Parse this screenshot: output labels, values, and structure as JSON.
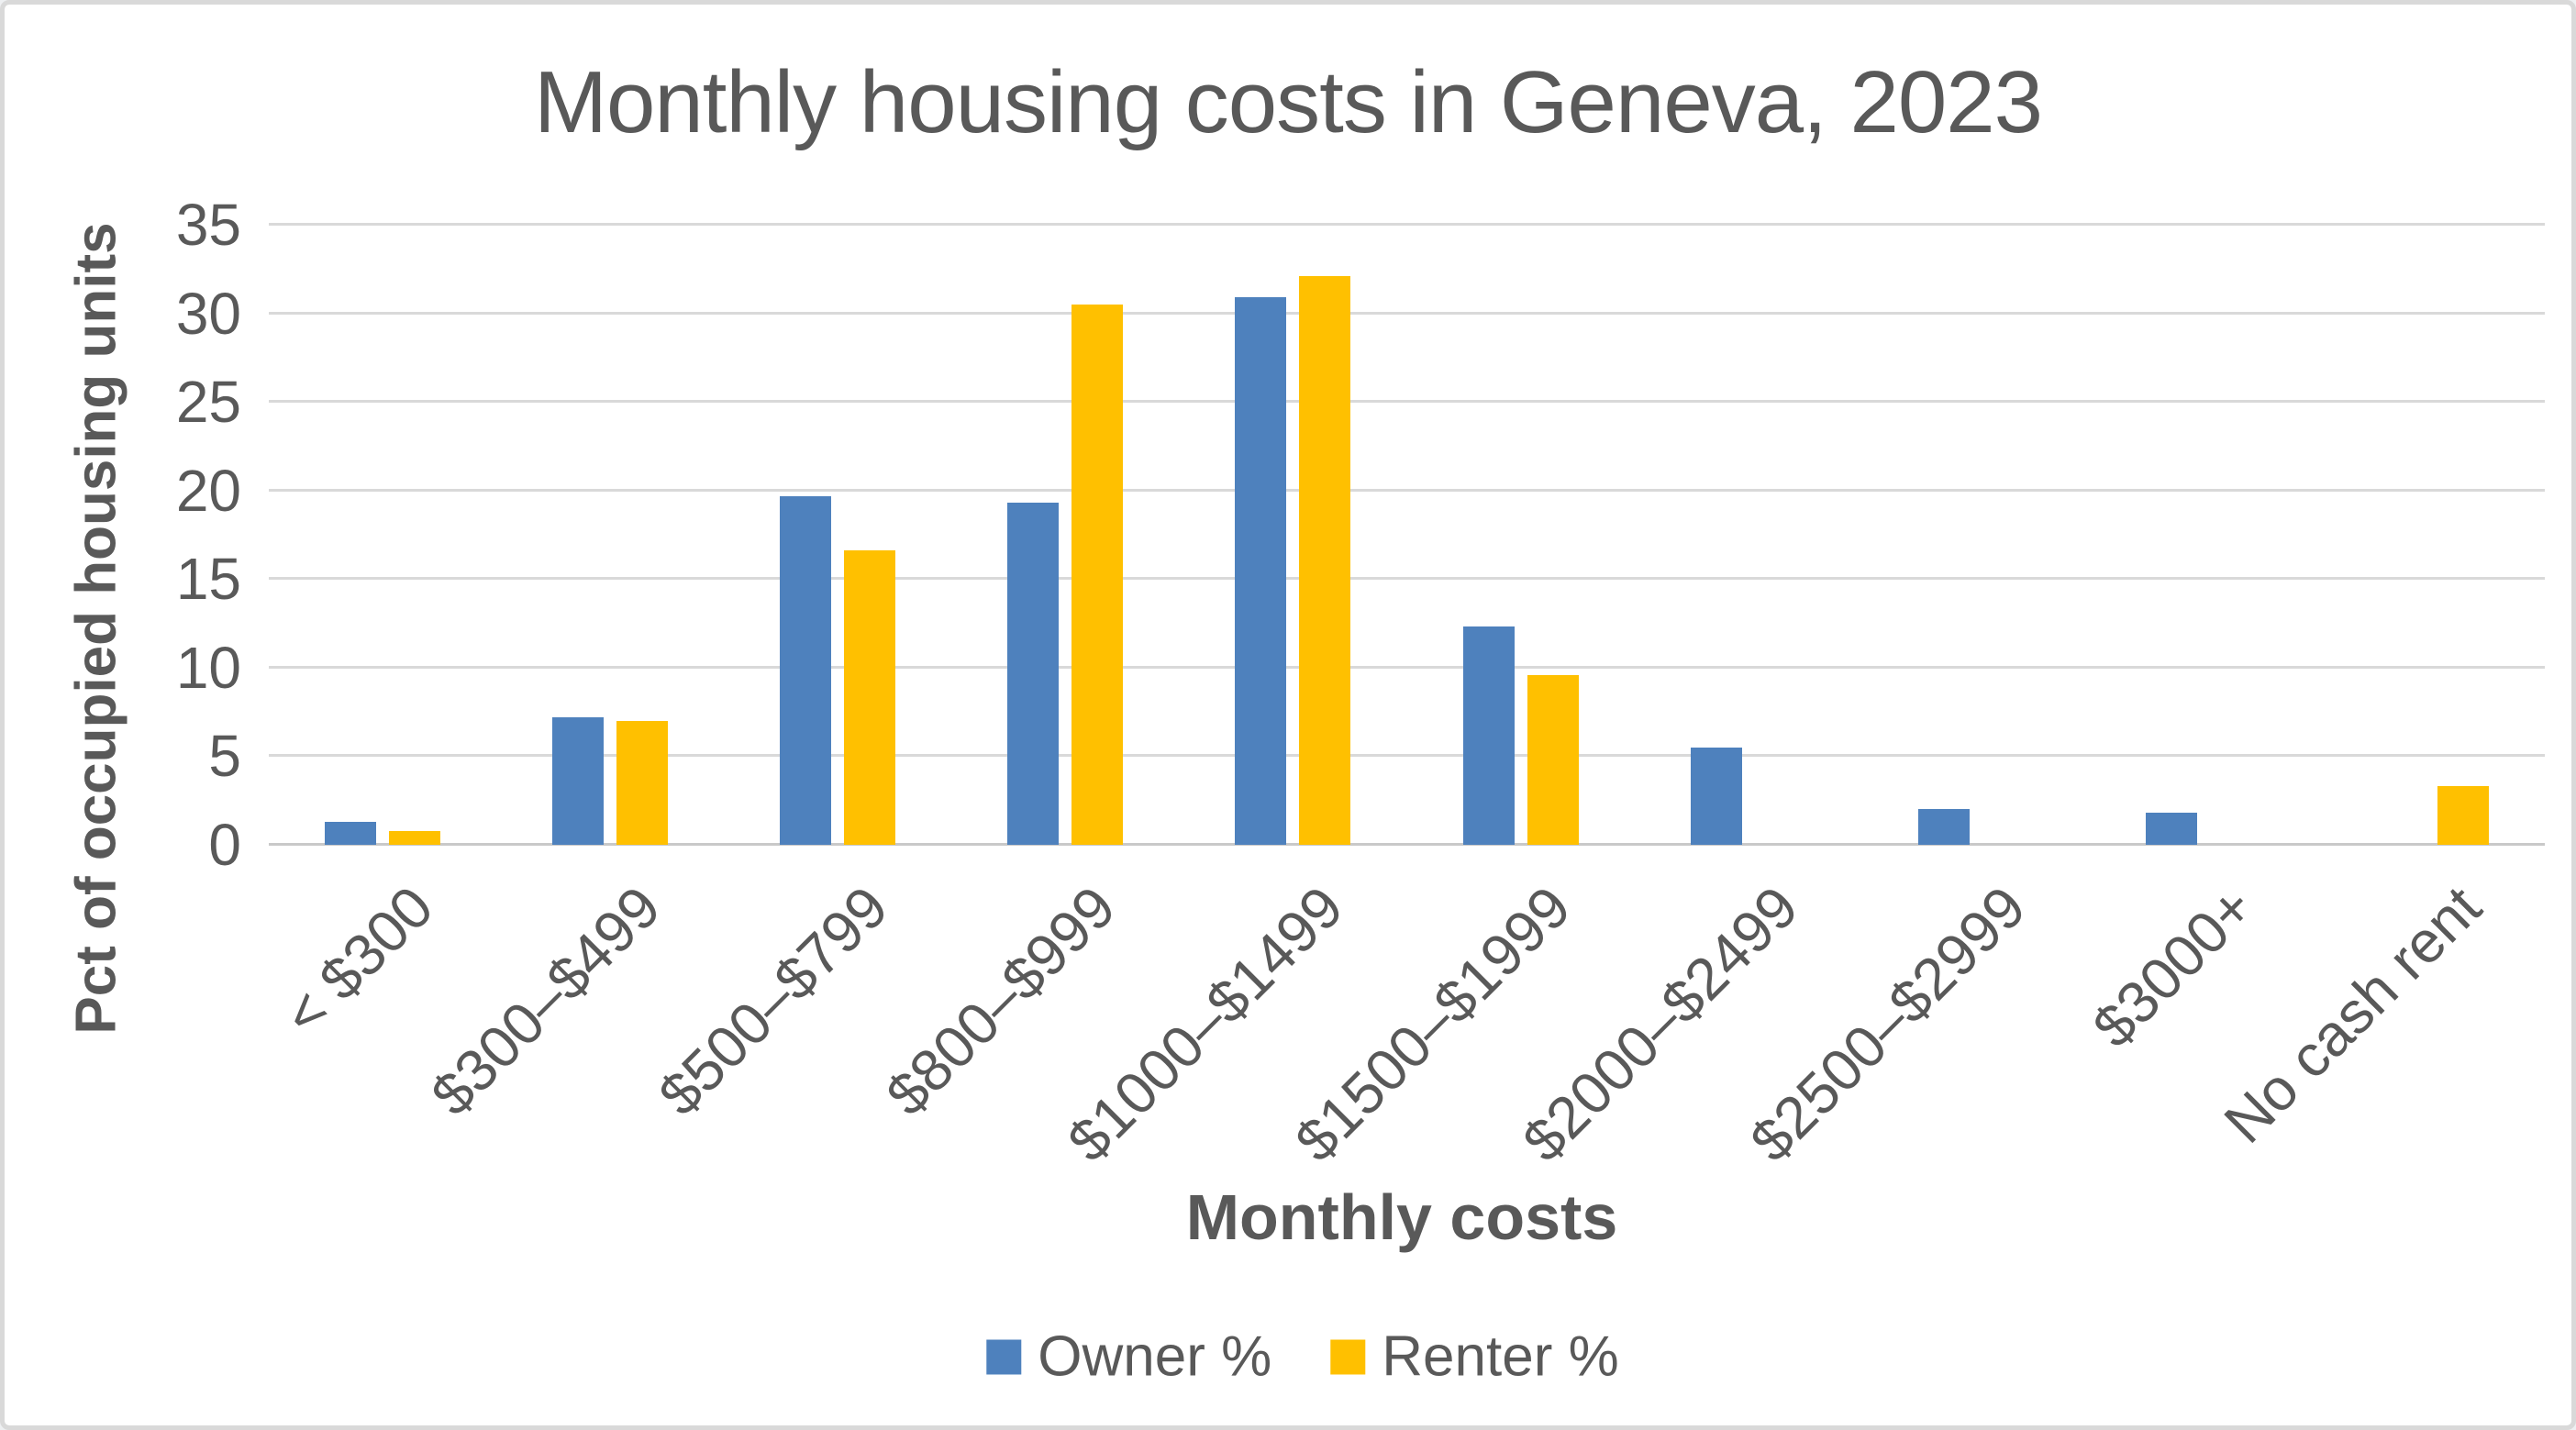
{
  "window": {
    "background": "#FFFFFF",
    "border_color": "#D9D9D9"
  },
  "chart_data": {
    "type": "bar",
    "title": "Monthly housing costs in Geneva, 2023",
    "xlabel": "Monthly costs",
    "ylabel": "Pct of occupied housing units",
    "categories": [
      "< $300",
      "$300–$499",
      "$500–$799",
      "$800–$999",
      "$1000–$1499",
      "$1500–$1999",
      "$2000–$2499",
      "$2500–$2999",
      "$3000+",
      "No cash rent"
    ],
    "series": [
      {
        "name": "Owner %",
        "color": "#4E81BD",
        "values": [
          1.3,
          7.2,
          19.7,
          19.3,
          30.9,
          12.3,
          5.5,
          2.0,
          1.8,
          0
        ]
      },
      {
        "name": "Renter %",
        "color": "#FFC000",
        "values": [
          0.8,
          7.0,
          16.6,
          30.5,
          32.1,
          9.6,
          0,
          0,
          0,
          3.3
        ]
      }
    ],
    "ylim": [
      0,
      35
    ],
    "y_ticks": [
      0,
      5,
      10,
      15,
      20,
      25,
      30,
      35
    ],
    "grid": true,
    "legend_position": "bottom",
    "text_color": "#595959",
    "gridline_color": "#D9D9D9",
    "axis_line_color": "#C9C9C9"
  }
}
